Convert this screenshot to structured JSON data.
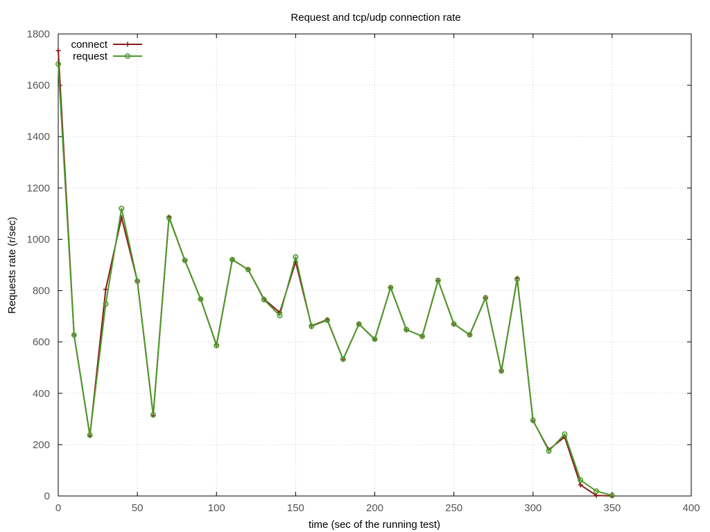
{
  "chart_data": {
    "type": "line",
    "title": "Request and tcp/udp connection rate",
    "xlabel": "time (sec of the running test)",
    "ylabel": "Requests rate (r/sec)",
    "xlim": [
      0,
      400
    ],
    "ylim": [
      0,
      1800
    ],
    "xticks": [
      0,
      50,
      100,
      150,
      200,
      250,
      300,
      350,
      400
    ],
    "yticks": [
      0,
      200,
      400,
      600,
      800,
      1000,
      1200,
      1400,
      1600,
      1800
    ],
    "grid": true,
    "legend_position": "top-left",
    "series": [
      {
        "name": "connect",
        "color": "#8b1a1a",
        "marker": "plus",
        "points": [
          [
            0,
            1735
          ],
          [
            10,
            627
          ],
          [
            20,
            235
          ],
          [
            30,
            805
          ],
          [
            40,
            1085
          ],
          [
            50,
            837
          ],
          [
            60,
            314
          ],
          [
            70,
            1087
          ],
          [
            80,
            918
          ],
          [
            90,
            767
          ],
          [
            100,
            588
          ],
          [
            110,
            921
          ],
          [
            120,
            882
          ],
          [
            130,
            767
          ],
          [
            140,
            715
          ],
          [
            150,
            912
          ],
          [
            160,
            663
          ],
          [
            170,
            687
          ],
          [
            180,
            532
          ],
          [
            190,
            670
          ],
          [
            200,
            610
          ],
          [
            210,
            812
          ],
          [
            220,
            648
          ],
          [
            230,
            622
          ],
          [
            240,
            840
          ],
          [
            250,
            670
          ],
          [
            260,
            628
          ],
          [
            270,
            772
          ],
          [
            280,
            487
          ],
          [
            290,
            848
          ],
          [
            300,
            293
          ],
          [
            310,
            180
          ],
          [
            320,
            230
          ],
          [
            330,
            43
          ],
          [
            340,
            2
          ],
          [
            350,
            0
          ]
        ]
      },
      {
        "name": "request",
        "color": "#4c9a2a",
        "marker": "circle",
        "points": [
          [
            0,
            1683
          ],
          [
            10,
            627
          ],
          [
            20,
            237
          ],
          [
            30,
            748
          ],
          [
            40,
            1120
          ],
          [
            50,
            837
          ],
          [
            60,
            316
          ],
          [
            70,
            1084
          ],
          [
            80,
            918
          ],
          [
            90,
            767
          ],
          [
            100,
            586
          ],
          [
            110,
            921
          ],
          [
            120,
            882
          ],
          [
            130,
            765
          ],
          [
            140,
            703
          ],
          [
            150,
            931
          ],
          [
            160,
            661
          ],
          [
            170,
            685
          ],
          [
            180,
            533
          ],
          [
            190,
            670
          ],
          [
            200,
            611
          ],
          [
            210,
            812
          ],
          [
            220,
            648
          ],
          [
            230,
            622
          ],
          [
            240,
            840
          ],
          [
            250,
            670
          ],
          [
            260,
            628
          ],
          [
            270,
            772
          ],
          [
            280,
            487
          ],
          [
            290,
            845
          ],
          [
            300,
            295
          ],
          [
            310,
            175
          ],
          [
            320,
            241
          ],
          [
            330,
            62
          ],
          [
            340,
            19
          ],
          [
            350,
            2
          ]
        ]
      }
    ]
  }
}
